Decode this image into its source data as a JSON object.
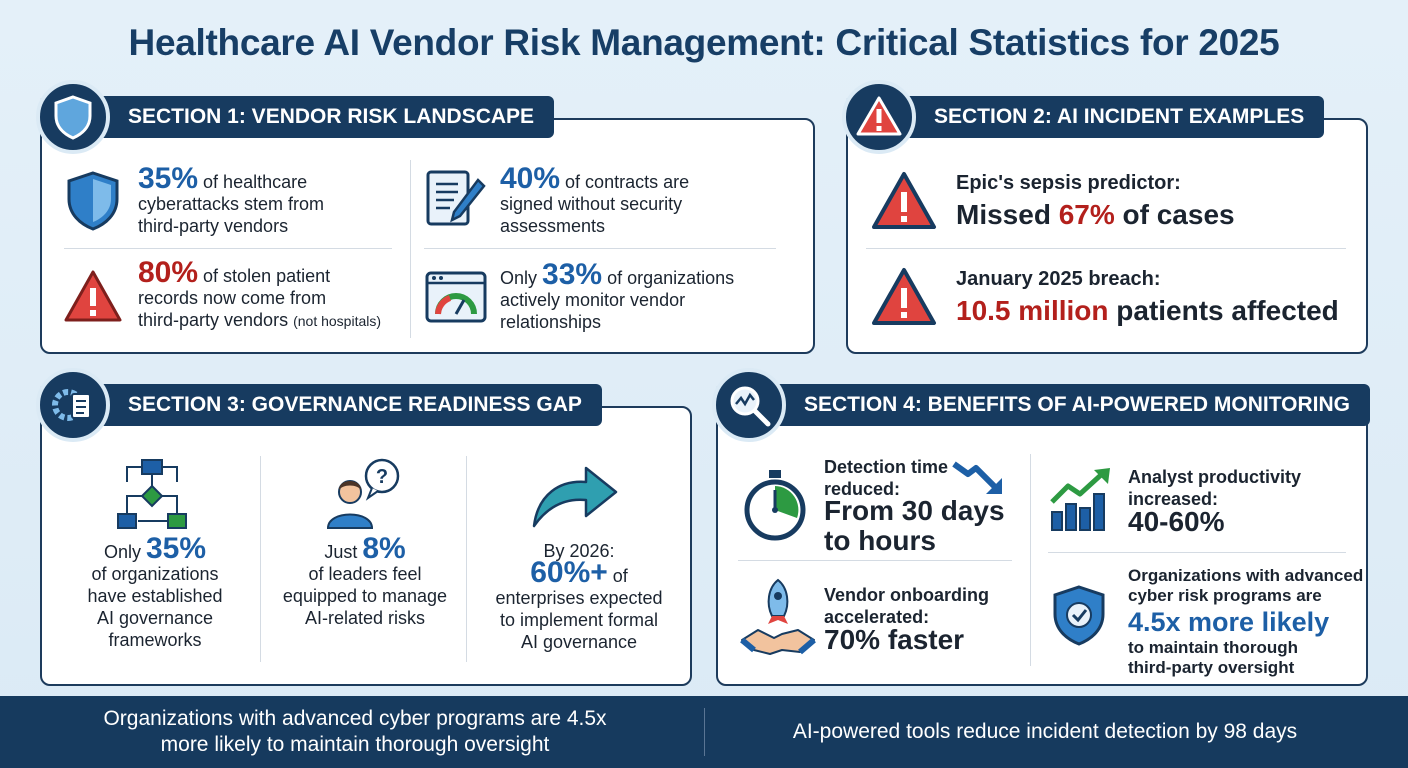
{
  "title": "Healthcare AI Vendor Risk Management: Critical Statistics for 2025",
  "colors": {
    "navy": "#173b60",
    "blue": "#1d5fa6",
    "red": "#b3201c",
    "green": "#2d9a42"
  },
  "section1": {
    "header": "SECTION 1: VENDOR RISK LANDSCAPE",
    "stat1": {
      "num": "35%",
      "line1": " of healthcare",
      "line2": "cyberattacks stem from",
      "line3": "third-party vendors"
    },
    "stat2": {
      "num": "40%",
      "line1": " of contracts are",
      "line2": "signed without security",
      "line3": "assessments"
    },
    "stat3": {
      "num": "80%",
      "line1": " of stolen patient",
      "line2": "records now come from",
      "line3": "third-party vendors",
      "note": "(not hospitals)"
    },
    "stat4": {
      "pre": "Only ",
      "num": "33%",
      "line1": " of organizations",
      "line2": "actively monitor vendor",
      "line3": "relationships"
    }
  },
  "section2": {
    "header": "SECTION 2: AI INCIDENT EXAMPLES",
    "ex1": {
      "label": "Epic's sepsis predictor:",
      "pre": "Missed ",
      "num": "67%",
      "post": " of cases"
    },
    "ex2": {
      "label": "January 2025 breach:",
      "num": "10.5 million",
      "post": " patients affected"
    }
  },
  "section3": {
    "header": "SECTION 3: GOVERNANCE READINESS GAP",
    "col1": {
      "pre": "Only ",
      "num": "35%",
      "l1": "of organizations",
      "l2": "have established",
      "l3": "AI governance",
      "l4": "frameworks"
    },
    "col2": {
      "pre": "Just ",
      "num": "8%",
      "l1": "of leaders feel",
      "l2": "equipped to manage",
      "l3": "AI-related risks"
    },
    "col3": {
      "pre": "By 2026:",
      "num": "60%+",
      "post": " of",
      "l1": "enterprises expected",
      "l2": "to implement formal",
      "l3": "AI governance"
    }
  },
  "section4": {
    "header": "SECTION 4: BENEFITS OF AI-POWERED MONITORING",
    "b1": {
      "l1": "Detection time",
      "l2": "reduced:",
      "v1": "From 30 days",
      "v2": "to hours"
    },
    "b2": {
      "l1": "Analyst productivity",
      "l2": "increased:",
      "v": "40-60%"
    },
    "b3": {
      "l1": "Vendor onboarding",
      "l2": "accelerated:",
      "v": "70% faster"
    },
    "b4": {
      "l1": "Organizations with advanced",
      "l2": "cyber risk programs are",
      "v": "4.5x more likely",
      "l3": "to maintain thorough",
      "l4": "third-party oversight"
    }
  },
  "footer": {
    "left1": "Organizations with advanced cyber programs are 4.5x",
    "left2": "more likely to maintain thorough oversight",
    "right": "AI-powered tools reduce incident detection by 98 days"
  }
}
